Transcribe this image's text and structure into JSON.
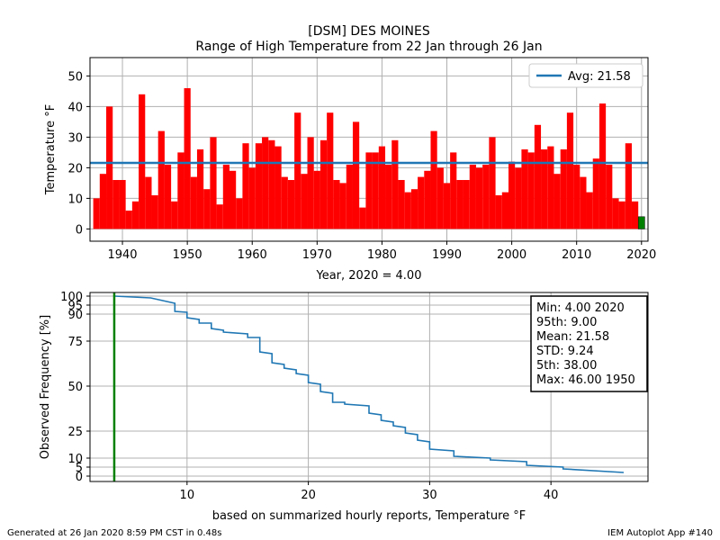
{
  "header": {
    "title_line1": "[DSM] DES MOINES",
    "title_line2": "Range of High Temperature from 22 Jan through 26 Jan"
  },
  "footer": {
    "generated": "Generated at 26 Jan 2020 8:59 PM CST in 0.48s",
    "app": "IEM Autoplot App #140"
  },
  "colors": {
    "bar": "#ff0000",
    "current_year": "#008000",
    "avg_line": "#1f77b4",
    "cdf_line": "#1f77b4",
    "grid": "#b0b0b0"
  },
  "chart_data": [
    {
      "type": "bar",
      "ylabel": "Temperature  °F",
      "xlabel": "Year, 2020 = 4.00",
      "xlim": [
        1935,
        2021
      ],
      "ylim": [
        -4,
        56
      ],
      "xticks": [
        1940,
        1950,
        1960,
        1970,
        1980,
        1990,
        2000,
        2010,
        2020
      ],
      "yticks": [
        0,
        10,
        20,
        30,
        40,
        50
      ],
      "grid": true,
      "legend_position": "top-right",
      "avg": 21.58,
      "avg_label": "Avg: 21.58",
      "highlight_year": 2020,
      "years": [
        1936,
        1937,
        1938,
        1939,
        1940,
        1941,
        1942,
        1943,
        1944,
        1945,
        1946,
        1947,
        1948,
        1949,
        1950,
        1951,
        1952,
        1953,
        1954,
        1955,
        1956,
        1957,
        1958,
        1959,
        1960,
        1961,
        1962,
        1963,
        1964,
        1965,
        1966,
        1967,
        1968,
        1969,
        1970,
        1971,
        1972,
        1973,
        1974,
        1975,
        1976,
        1977,
        1978,
        1979,
        1980,
        1981,
        1982,
        1983,
        1984,
        1985,
        1986,
        1987,
        1988,
        1989,
        1990,
        1991,
        1992,
        1993,
        1994,
        1995,
        1996,
        1997,
        1998,
        1999,
        2000,
        2001,
        2002,
        2003,
        2004,
        2005,
        2006,
        2007,
        2008,
        2009,
        2010,
        2011,
        2012,
        2013,
        2014,
        2015,
        2016,
        2017,
        2018,
        2019,
        2020
      ],
      "values": [
        10,
        18,
        40,
        16,
        16,
        6,
        9,
        44,
        17,
        11,
        32,
        21,
        9,
        25,
        46,
        17,
        26,
        13,
        30,
        8,
        21,
        19,
        10,
        28,
        20,
        28,
        30,
        29,
        27,
        17,
        16,
        38,
        18,
        30,
        19,
        29,
        38,
        16,
        15,
        21,
        35,
        7,
        25,
        25,
        27,
        21,
        29,
        16,
        12,
        13,
        17,
        19,
        32,
        20,
        15,
        25,
        16,
        16,
        21,
        20,
        21,
        30,
        11,
        12,
        22,
        20,
        26,
        25,
        34,
        26,
        27,
        18,
        26,
        38,
        21,
        17,
        12,
        23,
        41,
        21,
        10,
        9,
        28,
        9,
        4
      ]
    },
    {
      "type": "line",
      "ylabel": "Observed Frequency [%]",
      "xlabel": "based on summarized hourly reports, Temperature  °F",
      "xlim": [
        2,
        48
      ],
      "ylim": [
        -3,
        102
      ],
      "xticks": [
        10,
        20,
        30,
        40
      ],
      "yticks": [
        0,
        5,
        10,
        25,
        50,
        75,
        90,
        95,
        100
      ],
      "grid": true,
      "current_value": 4.0,
      "x": [
        4,
        7,
        9,
        9,
        10,
        10,
        11,
        11,
        12,
        12,
        13,
        13,
        15,
        15,
        16,
        16,
        17,
        17,
        18,
        18,
        19,
        19,
        20,
        20,
        21,
        21,
        22,
        22,
        23,
        23,
        25,
        25,
        26,
        26,
        27,
        27,
        28,
        28,
        29,
        29,
        30,
        30,
        32,
        32,
        35,
        35,
        38,
        38,
        41,
        41,
        46
      ],
      "y": [
        100,
        99,
        96,
        91.5,
        91,
        88,
        87,
        85,
        85,
        82,
        81,
        80,
        79,
        77,
        77,
        69,
        68,
        63,
        62,
        60,
        59,
        57,
        56,
        52,
        51,
        47,
        46,
        41,
        41,
        40,
        39,
        35,
        34,
        31,
        30,
        28,
        27,
        24,
        23,
        20,
        19,
        15,
        14,
        11,
        10,
        9,
        8,
        6,
        5,
        4,
        2
      ]
    }
  ],
  "stats_box": {
    "min": "Min: 4.00 2020",
    "p95": "95th: 9.00",
    "mean": "Mean: 21.58",
    "std": "STD: 9.24",
    "p5": "5th: 38.00",
    "max": "Max: 46.00 1950"
  }
}
